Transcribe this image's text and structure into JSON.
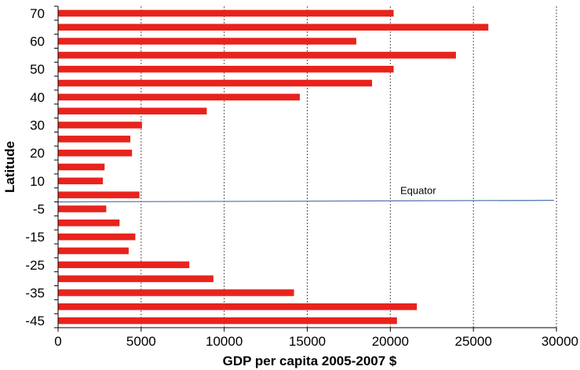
{
  "chart_data": {
    "type": "bar",
    "orientation": "horizontal",
    "title": "",
    "xlabel": "GDP per capita 2005-2007 $",
    "ylabel": "Latitude",
    "xlim": [
      0,
      30000
    ],
    "x_ticks": [
      0,
      5000,
      10000,
      15000,
      20000,
      25000,
      30000
    ],
    "y_tick_labels": [
      "70",
      "60",
      "50",
      "40",
      "30",
      "20",
      "10",
      "-5",
      "-15",
      "-25",
      "-35",
      "-45"
    ],
    "grid": "vertical dotted",
    "legend": "none",
    "bar_color": "#e8231c",
    "categories": [
      "70",
      "65",
      "60",
      "55",
      "50",
      "45",
      "40",
      "35",
      "30",
      "25",
      "20",
      "15",
      "10",
      "5",
      "-5",
      "-10",
      "-15",
      "-20",
      "-25",
      "-30",
      "-35",
      "-40",
      "-45"
    ],
    "values": [
      20200,
      25900,
      17950,
      23950,
      20200,
      18900,
      14550,
      8950,
      5050,
      4350,
      4450,
      2800,
      2700,
      4900,
      2900,
      3700,
      4650,
      4250,
      7900,
      9350,
      14200,
      21600,
      20400
    ],
    "annotations": [
      {
        "text": "Equator",
        "line_color": "#5b7db5"
      }
    ]
  }
}
